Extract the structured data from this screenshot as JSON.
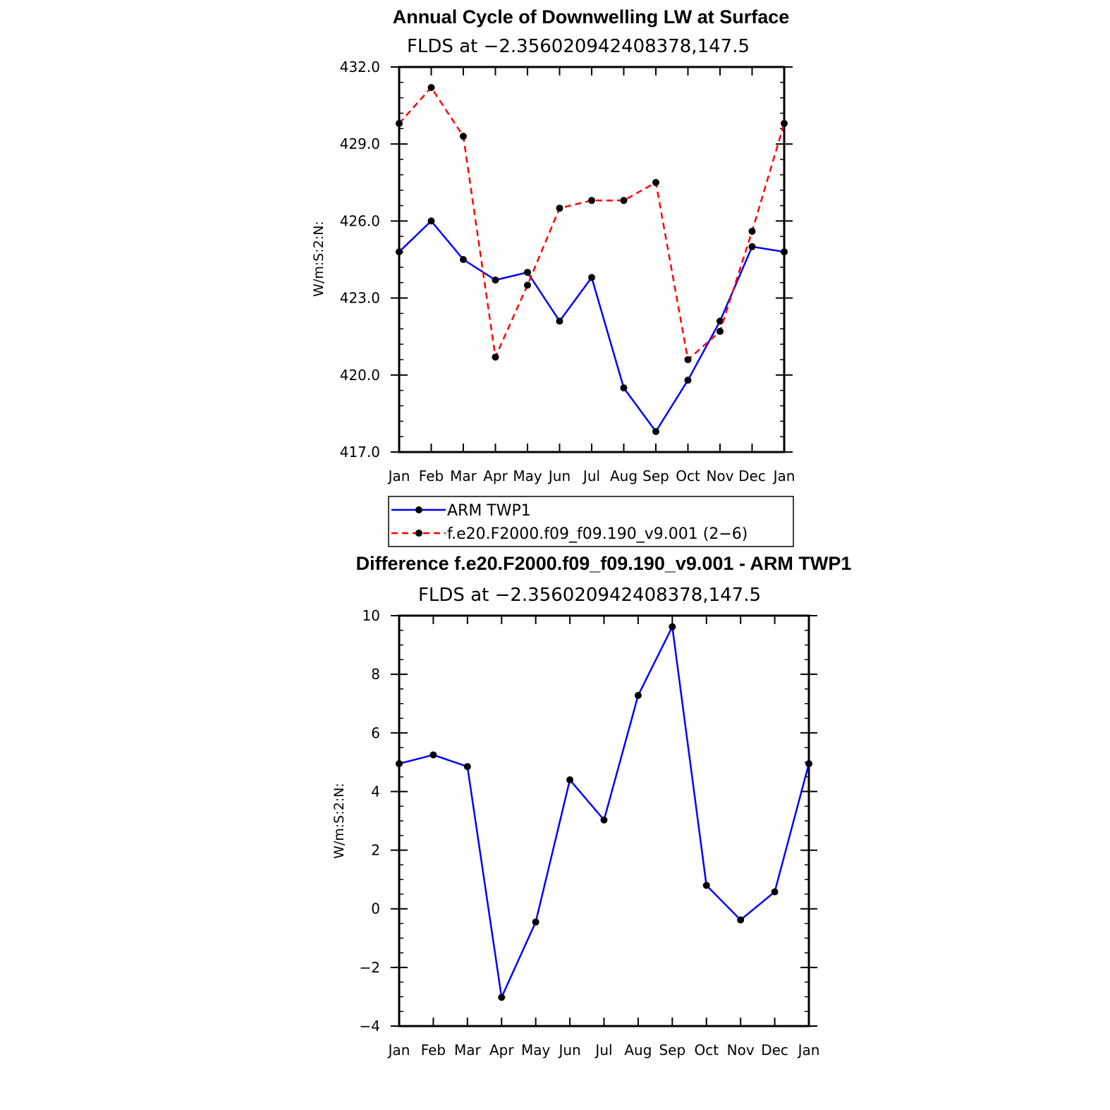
{
  "chart_data": [
    {
      "type": "line",
      "title": "Annual Cycle of Downwelling LW at Surface",
      "subtitle": "FLDS at −2.356020942408378,147.5",
      "ylabel": "W/m:S:2:N:",
      "xlabel": "",
      "categories": [
        "Jan",
        "Feb",
        "Mar",
        "Apr",
        "May",
        "Jun",
        "Jul",
        "Aug",
        "Sep",
        "Oct",
        "Nov",
        "Dec",
        "Jan"
      ],
      "ylim": [
        417.0,
        432.0
      ],
      "yticks": [
        "417.0",
        "420.0",
        "423.0",
        "426.0",
        "429.0",
        "432.0"
      ],
      "grid": false,
      "legend_position": "bottom",
      "series": [
        {
          "name": "ARM TWP1",
          "color": "#0000ff",
          "dash": "solid",
          "values": [
            424.8,
            426.0,
            424.5,
            423.7,
            424.0,
            422.1,
            423.8,
            419.5,
            417.8,
            419.8,
            422.1,
            425.0,
            424.8
          ]
        },
        {
          "name": "f.e20.F2000.f09_f09.190_v9.001 (2−6)",
          "color": "#ff0000",
          "dash": "dashed",
          "values": [
            429.8,
            431.2,
            429.3,
            420.7,
            423.5,
            426.5,
            426.8,
            426.8,
            427.5,
            420.6,
            421.7,
            425.6,
            429.8
          ]
        }
      ]
    },
    {
      "type": "line",
      "title": "Difference f.e20.F2000.f09_f09.190_v9.001 - ARM TWP1",
      "subtitle": "FLDS at −2.356020942408378,147.5",
      "ylabel": "W/m:S:2:N:",
      "xlabel": "",
      "categories": [
        "Jan",
        "Feb",
        "Mar",
        "Apr",
        "May",
        "Jun",
        "Jul",
        "Aug",
        "Sep",
        "Oct",
        "Nov",
        "Dec",
        "Jan"
      ],
      "ylim": [
        -4,
        10
      ],
      "yticks": [
        "−4",
        "−2",
        "0",
        "2",
        "4",
        "6",
        "8",
        "10"
      ],
      "grid": false,
      "series": [
        {
          "name": "",
          "color": "#0000ff",
          "dash": "solid",
          "values": [
            4.95,
            5.25,
            4.85,
            -3.02,
            -0.45,
            4.4,
            3.03,
            7.28,
            9.62,
            0.8,
            -0.38,
            0.58,
            4.95
          ]
        }
      ]
    }
  ]
}
